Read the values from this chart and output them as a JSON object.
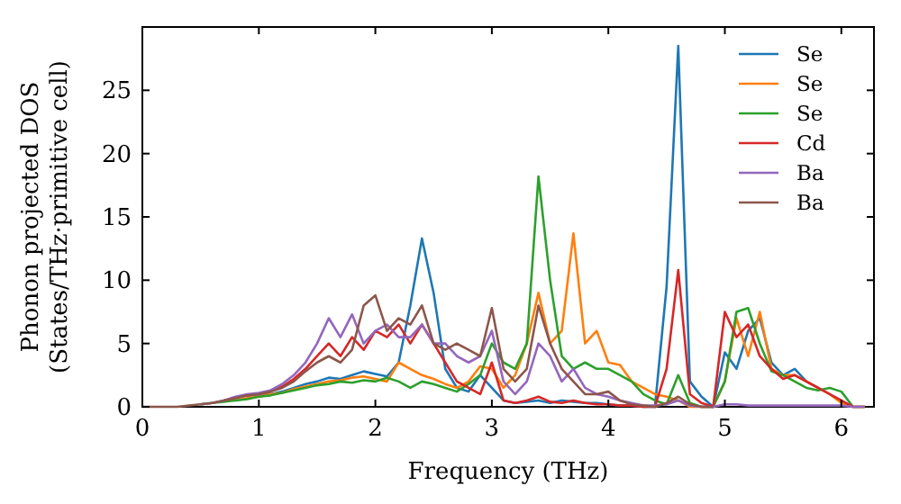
{
  "chart_data": {
    "type": "line",
    "xlabel": "Frequency (THz)",
    "ylabel": "Phonon projected DOS\n(States/THz·primitive cell)",
    "x": [
      0,
      0.1,
      0.2,
      0.3,
      0.4,
      0.5,
      0.6,
      0.7,
      0.8,
      0.9,
      1.0,
      1.1,
      1.2,
      1.3,
      1.4,
      1.5,
      1.6,
      1.7,
      1.8,
      1.9,
      2.0,
      2.1,
      2.2,
      2.3,
      2.4,
      2.5,
      2.6,
      2.7,
      2.8,
      2.9,
      3.0,
      3.1,
      3.2,
      3.3,
      3.4,
      3.5,
      3.6,
      3.7,
      3.8,
      3.9,
      4.0,
      4.1,
      4.2,
      4.3,
      4.4,
      4.5,
      4.6,
      4.7,
      4.8,
      4.9,
      5.0,
      5.1,
      5.2,
      5.3,
      5.4,
      5.5,
      5.6,
      5.7,
      5.8,
      5.9,
      6.0,
      6.1,
      6.2
    ],
    "series": [
      {
        "name": "Se",
        "color": "#1f77b4",
        "values": [
          null,
          null,
          null,
          null,
          null,
          null,
          null,
          null,
          null,
          null,
          0.8,
          1.0,
          1.2,
          1.5,
          1.8,
          2.0,
          2.3,
          2.2,
          2.5,
          2.8,
          2.6,
          2.4,
          3.5,
          8,
          13.3,
          9,
          3,
          1.5,
          1.2,
          2.5,
          1.5,
          0.5,
          0.3,
          0.4,
          0.5,
          0.3,
          0.5,
          0.4,
          0.3,
          0.3,
          0.2,
          0.1,
          0.1,
          0,
          0,
          9.5,
          28.5,
          2,
          0.8,
          0,
          4.3,
          3,
          6,
          7,
          3.5,
          2.5,
          3,
          2,
          1.5,
          null,
          null,
          null,
          null
        ]
      },
      {
        "name": "Se",
        "color": "#ff7f0e",
        "values": [
          null,
          null,
          null,
          null,
          null,
          null,
          null,
          null,
          0.5,
          0.7,
          0.8,
          1.0,
          1.1,
          1.4,
          1.6,
          1.8,
          2.0,
          2.1,
          2.3,
          2.4,
          2.2,
          2.0,
          3.5,
          3,
          2.5,
          2.2,
          1.8,
          1.5,
          2,
          3.2,
          3,
          1.5,
          2.5,
          5,
          9,
          5,
          6,
          13.7,
          5,
          6,
          3.5,
          3.3,
          2,
          1.5,
          1,
          0.8,
          0.5,
          0,
          0,
          0,
          2,
          7,
          4,
          7.5,
          3,
          2.5,
          2.5,
          2,
          1.5,
          1,
          0.3,
          0,
          0
        ]
      },
      {
        "name": "Se",
        "color": "#2ca02c",
        "values": [
          null,
          null,
          null,
          null,
          null,
          0.2,
          0.3,
          0.4,
          0.5,
          0.6,
          0.8,
          0.9,
          1.1,
          1.3,
          1.5,
          1.7,
          1.8,
          2.0,
          1.9,
          2.1,
          2.0,
          2.3,
          2.0,
          1.5,
          2.0,
          1.8,
          1.5,
          1.2,
          1.8,
          2.5,
          5,
          3.5,
          3,
          5,
          18.2,
          10,
          4,
          3,
          3.5,
          3,
          3,
          2.5,
          2,
          1,
          0.5,
          0.2,
          2.5,
          0.3,
          0,
          0,
          2,
          7.5,
          7.8,
          5,
          2.8,
          2.5,
          2,
          1.5,
          1.3,
          1.5,
          1.2,
          0,
          0
        ]
      },
      {
        "name": "Cd",
        "color": "#d62728",
        "values": [
          null,
          null,
          null,
          null,
          null,
          null,
          null,
          0.5,
          0.7,
          0.9,
          1.0,
          1.2,
          1.6,
          2.2,
          3,
          4,
          5,
          4,
          5.5,
          4.5,
          6,
          5.5,
          6.5,
          5,
          6.5,
          5,
          3.5,
          2,
          1.5,
          1,
          3.5,
          0.5,
          0.3,
          0.5,
          0.8,
          0.4,
          0.3,
          0.5,
          0.3,
          0.2,
          0.2,
          0.1,
          0.1,
          0,
          0,
          3,
          10.8,
          1,
          0.3,
          0,
          7.5,
          5.5,
          6.5,
          4,
          3,
          2.2,
          2.5,
          2,
          1.5,
          1,
          0.5,
          0,
          0
        ]
      },
      {
        "name": "Ba",
        "color": "#9467bd",
        "values": [
          null,
          null,
          null,
          null,
          null,
          0.2,
          0.3,
          0.5,
          0.8,
          1.0,
          1.1,
          1.3,
          1.8,
          2.5,
          3.5,
          5,
          7,
          5.5,
          7.3,
          5,
          6,
          6.5,
          5.5,
          5.5,
          6.5,
          5,
          5,
          4,
          3.5,
          4,
          6,
          2,
          1,
          2,
          5,
          4,
          2,
          3,
          1.5,
          1,
          0.8,
          0.5,
          0.3,
          0.1,
          0.1,
          0.2,
          0.5,
          0.1,
          0,
          0,
          0.2,
          0.2,
          0.1,
          0.1,
          0.1,
          0.1,
          0.1,
          0.1,
          0.1,
          0.1,
          0.1,
          0,
          0
        ]
      },
      {
        "name": "Ba",
        "color": "#8c564b",
        "values": [
          0,
          0,
          0,
          0,
          0.1,
          0.2,
          0.3,
          0.5,
          0.7,
          0.9,
          1.0,
          1.2,
          1.5,
          2,
          2.8,
          3.5,
          4,
          3.5,
          4.5,
          8,
          8.8,
          6,
          7,
          6.5,
          8,
          5,
          4.5,
          5,
          4.5,
          4,
          7.8,
          3,
          2,
          3,
          8,
          5,
          3,
          2,
          1,
          1,
          1.2,
          0.5,
          0.2,
          0.1,
          0,
          0.3,
          0.8,
          0.2,
          0,
          0,
          null,
          null,
          null,
          null,
          null,
          null,
          null,
          null,
          null,
          null,
          null,
          null,
          null
        ]
      }
    ],
    "xlim": [
      0,
      6.28
    ],
    "xticks": [
      0,
      1,
      2,
      3,
      4,
      5,
      6
    ],
    "ylim": [
      0,
      30
    ],
    "yticks": [
      0,
      5,
      10,
      15,
      20,
      25
    ],
    "legend": "top right",
    "grid": false,
    "marker": "none",
    "line_style": "solid"
  }
}
